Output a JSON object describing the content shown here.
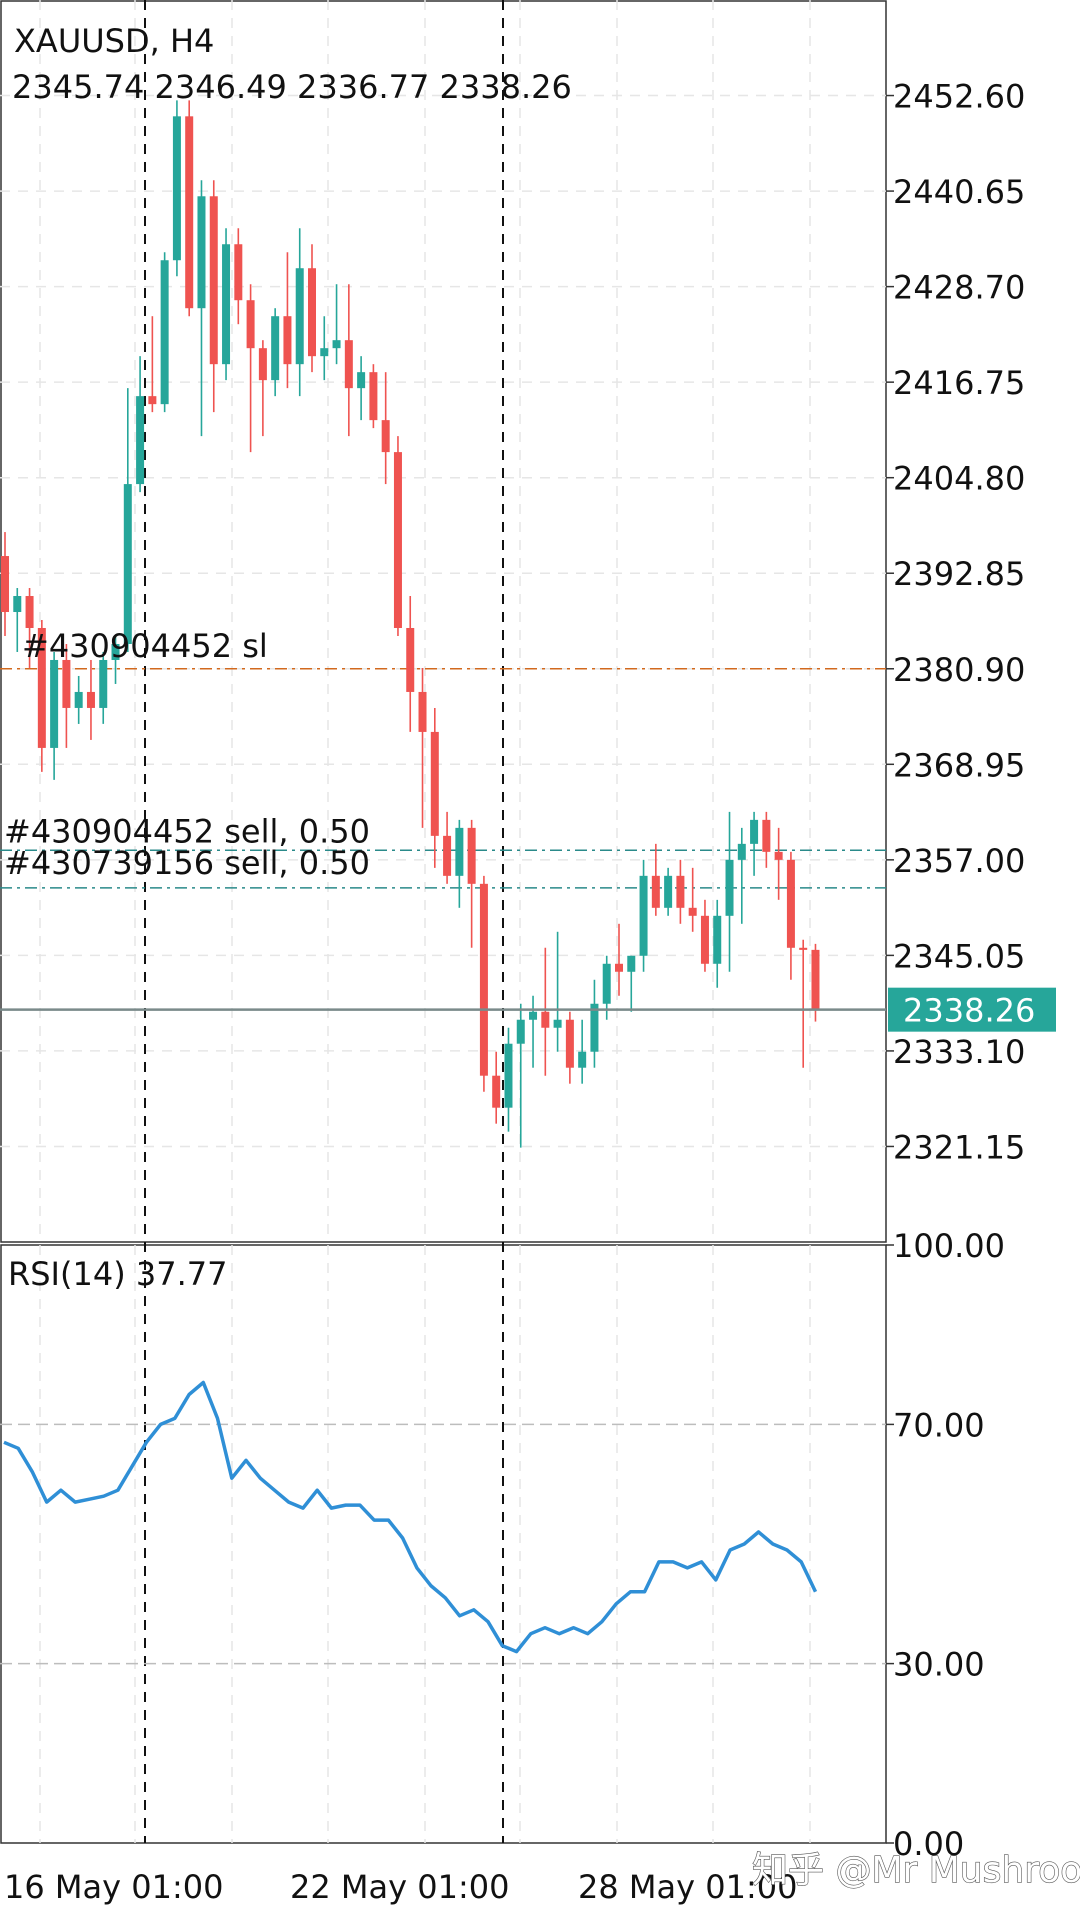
{
  "chart_data": [
    {
      "type": "candlestick",
      "title": "XAUUSD, H4",
      "ohlc_line": "2345.74 2346.49 2336.77 2338.26",
      "ylim": [
        2309.2,
        2464.55
      ],
      "y_ticks": [
        "2452.60",
        "2440.65",
        "2428.70",
        "2416.75",
        "2404.80",
        "2392.85",
        "2380.90",
        "2368.95",
        "2357.00",
        "2345.05",
        "2333.10",
        "2321.15"
      ],
      "current_price_label": "2338.26",
      "current_price": 2338.26,
      "x_tick_labels": [
        "16 May 01:00",
        "22 May 01:00",
        "28 May 01:00"
      ],
      "order_lines": [
        {
          "label": "#430904452 sl",
          "price": 2380.9,
          "color": "#d2691e"
        },
        {
          "label": "#430904452 sell, 0.50",
          "price": 2358.2,
          "color": "#2a8a8a"
        },
        {
          "label": "#430739156 sell, 0.50",
          "price": 2353.5,
          "color": "#2a8a8a"
        }
      ],
      "candles": [
        [
          2395.0,
          2398.0,
          2385.0,
          2388.0
        ],
        [
          2388.0,
          2391.0,
          2383.0,
          2390.0
        ],
        [
          2390.0,
          2391.0,
          2381.0,
          2386.0
        ],
        [
          2386.0,
          2387.0,
          2368.0,
          2371.0
        ],
        [
          2371.0,
          2383.0,
          2367.0,
          2382.0
        ],
        [
          2382.0,
          2384.0,
          2371.0,
          2376.0
        ],
        [
          2376.0,
          2380.0,
          2374.0,
          2378.0
        ],
        [
          2378.0,
          2382.0,
          2372.0,
          2376.0
        ],
        [
          2376.0,
          2383.0,
          2374.0,
          2382.0
        ],
        [
          2382.0,
          2385.0,
          2379.0,
          2384.0
        ],
        [
          2384.0,
          2416.0,
          2383.0,
          2404.0
        ],
        [
          2404.0,
          2420.0,
          2403.0,
          2415.0
        ],
        [
          2415.0,
          2425.0,
          2413.0,
          2414.0
        ],
        [
          2414.0,
          2433.0,
          2413.0,
          2432.0
        ],
        [
          2432.0,
          2452.0,
          2430.0,
          2450.0
        ],
        [
          2450.0,
          2452.0,
          2425.0,
          2426.0
        ],
        [
          2426.0,
          2442.0,
          2410.0,
          2440.0
        ],
        [
          2440.0,
          2442.0,
          2413.0,
          2419.0
        ],
        [
          2419.0,
          2436.0,
          2417.0,
          2434.0
        ],
        [
          2434.0,
          2436.0,
          2424.0,
          2427.0
        ],
        [
          2427.0,
          2429.0,
          2408.0,
          2421.0
        ],
        [
          2421.0,
          2422.0,
          2410.0,
          2417.0
        ],
        [
          2417.0,
          2426.0,
          2415.0,
          2425.0
        ],
        [
          2425.0,
          2433.0,
          2416.0,
          2419.0
        ],
        [
          2419.0,
          2436.0,
          2415.0,
          2431.0
        ],
        [
          2431.0,
          2434.0,
          2418.0,
          2420.0
        ],
        [
          2420.0,
          2425.0,
          2417.0,
          2421.0
        ],
        [
          2421.0,
          2429.0,
          2419.0,
          2422.0
        ],
        [
          2422.0,
          2429.0,
          2410.0,
          2416.0
        ],
        [
          2416.0,
          2420.0,
          2412.0,
          2418.0
        ],
        [
          2418.0,
          2419.0,
          2411.0,
          2412.0
        ],
        [
          2412.0,
          2418.0,
          2404.0,
          2408.0
        ],
        [
          2408.0,
          2410.0,
          2385.0,
          2386.0
        ],
        [
          2386.0,
          2390.0,
          2373.0,
          2378.0
        ],
        [
          2378.0,
          2381.0,
          2361.0,
          2373.0
        ],
        [
          2373.0,
          2376.0,
          2356.0,
          2360.0
        ],
        [
          2360.0,
          2363.0,
          2354.0,
          2355.0
        ],
        [
          2355.0,
          2362.0,
          2351.0,
          2361.0
        ],
        [
          2361.0,
          2362.0,
          2346.0,
          2354.0
        ],
        [
          2354.0,
          2355.0,
          2328.0,
          2330.0
        ],
        [
          2330.0,
          2333.0,
          2324.0,
          2326.0
        ],
        [
          2326.0,
          2336.0,
          2323.0,
          2334.0
        ],
        [
          2334.0,
          2339.0,
          2321.0,
          2337.0
        ],
        [
          2337.0,
          2340.0,
          2331.0,
          2338.0
        ],
        [
          2338.0,
          2346.0,
          2330.0,
          2336.0
        ],
        [
          2336.0,
          2348.0,
          2333.0,
          2337.0
        ],
        [
          2337.0,
          2338.0,
          2329.0,
          2331.0
        ],
        [
          2331.0,
          2337.0,
          2329.0,
          2333.0
        ],
        [
          2333.0,
          2342.0,
          2331.0,
          2339.0
        ],
        [
          2339.0,
          2345.0,
          2337.0,
          2344.0
        ],
        [
          2344.0,
          2349.0,
          2340.0,
          2343.0
        ],
        [
          2343.0,
          2345.0,
          2338.0,
          2345.0
        ],
        [
          2345.0,
          2357.0,
          2343.0,
          2355.0
        ],
        [
          2355.0,
          2359.0,
          2350.0,
          2351.0
        ],
        [
          2351.0,
          2356.0,
          2350.0,
          2355.0
        ],
        [
          2355.0,
          2357.0,
          2349.0,
          2351.0
        ],
        [
          2351.0,
          2356.0,
          2348.0,
          2350.0
        ],
        [
          2350.0,
          2352.0,
          2343.0,
          2344.0
        ],
        [
          2344.0,
          2352.0,
          2341.0,
          2350.0
        ],
        [
          2350.0,
          2363.0,
          2343.0,
          2357.0
        ],
        [
          2357.0,
          2361.0,
          2349.0,
          2359.0
        ],
        [
          2359.0,
          2363.0,
          2355.0,
          2362.0
        ],
        [
          2362.0,
          2363.0,
          2356.0,
          2358.0
        ],
        [
          2358.0,
          2361.0,
          2352.0,
          2357.0
        ],
        [
          2357.0,
          2358.0,
          2342.0,
          2346.0
        ],
        [
          2346.0,
          2347.0,
          2331.0,
          2345.74
        ],
        [
          2345.74,
          2346.49,
          2336.77,
          2338.26
        ]
      ]
    },
    {
      "type": "line",
      "title": "RSI(14) 37.77",
      "ylim": [
        0,
        100
      ],
      "y_ticks": [
        "100.00",
        "70.00",
        "30.00",
        "0.00"
      ],
      "levels": [
        70,
        30
      ],
      "series": [
        {
          "color": "#2f8fd6",
          "values": [
            67,
            66,
            62,
            57,
            59,
            57,
            57.5,
            58,
            59,
            63,
            67,
            70,
            71,
            75,
            77,
            71,
            61,
            64,
            61,
            59,
            57,
            56,
            59,
            56,
            56.5,
            56.5,
            54,
            54,
            51,
            46,
            43,
            41,
            38,
            39,
            37,
            33,
            32,
            35,
            36,
            35,
            36,
            35,
            37,
            40,
            42,
            42,
            47,
            47,
            46,
            47,
            44,
            49,
            50,
            52,
            50,
            49,
            47,
            42
          ]
        }
      ]
    }
  ],
  "watermark": "知乎 @Mr Mushroom"
}
